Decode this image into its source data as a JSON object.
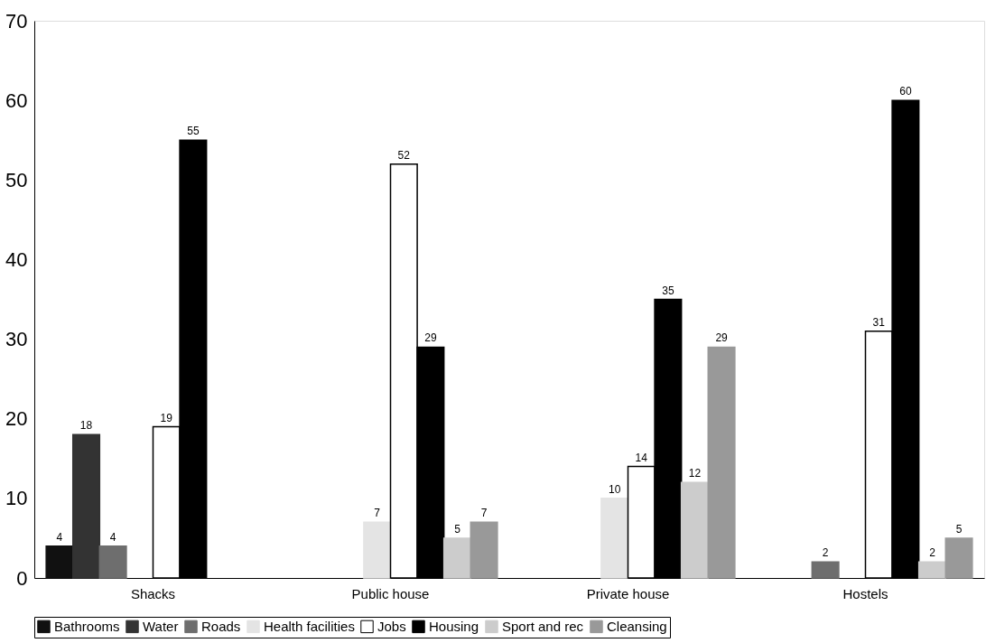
{
  "chart_data": {
    "type": "bar",
    "categories": [
      "Shacks",
      "Public house",
      "Private house",
      "Hostels"
    ],
    "series": [
      {
        "name": "Bathrooms",
        "color": "#111111",
        "values": [
          4,
          null,
          null,
          null
        ]
      },
      {
        "name": "Water",
        "color": "#333333",
        "values": [
          18,
          null,
          null,
          null
        ]
      },
      {
        "name": "Roads",
        "color": "#6e6e6e",
        "values": [
          4,
          null,
          null,
          2
        ]
      },
      {
        "name": "Health facilities",
        "color": "#e4e4e4",
        "values": [
          null,
          7,
          10,
          null
        ]
      },
      {
        "name": "Jobs",
        "color": "#ffffff",
        "values": [
          19,
          52,
          14,
          31
        ]
      },
      {
        "name": "Housing",
        "color": "#000000",
        "values": [
          55,
          29,
          35,
          60
        ]
      },
      {
        "name": "Sport and rec",
        "color": "#cccccc",
        "values": [
          null,
          5,
          12,
          2
        ]
      },
      {
        "name": "Cleansing",
        "color": "#999999",
        "values": [
          null,
          7,
          29,
          5
        ]
      }
    ],
    "ylim": [
      0,
      70
    ],
    "yticks": [
      0,
      10,
      20,
      30,
      40,
      50,
      60,
      70
    ],
    "grid": false,
    "legend": "bottom",
    "data_labels": true
  }
}
